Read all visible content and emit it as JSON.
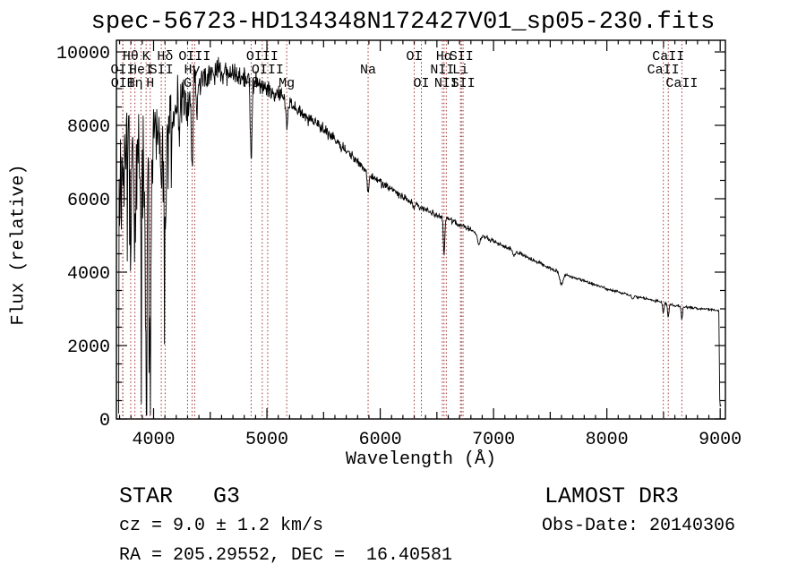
{
  "figure": {
    "annotations": {
      "class_label": "STAR   G3",
      "cz_label": "cz = 9.0 ± 1.2 km/s",
      "radec_label": "RA = 205.29552, DEC =  16.40581",
      "survey_label": "LAMOST DR3",
      "obsdate_label": "Obs-Date: 20140306"
    }
  },
  "chart_data": {
    "type": "line",
    "title": "spec-56723-HD134348N172427V01_sp05-230.fits",
    "xlabel": "Wavelength (Å)",
    "ylabel": "Flux (relative)",
    "xlim": [
      3672,
      9046
    ],
    "ylim": [
      0,
      10317
    ],
    "xticks": [
      4000,
      5000,
      6000,
      7000,
      8000,
      9000
    ],
    "yticks": [
      0,
      2000,
      4000,
      6000,
      8000,
      10000
    ],
    "x_minor_step": 100,
    "x_medium_step": 500,
    "y_minor_step": 500,
    "grid": false,
    "legend": "none",
    "colors": {
      "spectrum": "#000000",
      "line_marker": "#9b3030",
      "frame": "#000000",
      "background": "#ffffff"
    },
    "spectral_lines": [
      {
        "label": "Hθ",
        "wavelength": 3798,
        "row": 1
      },
      {
        "label": "K",
        "wavelength": 3934,
        "row": 1
      },
      {
        "label": "Hδ",
        "wavelength": 4102,
        "row": 1
      },
      {
        "label": "OIII",
        "wavelength": 4363,
        "row": 1
      },
      {
        "label": "OIII",
        "wavelength": 4959,
        "row": 1
      },
      {
        "label": "OI",
        "wavelength": 6300,
        "row": 1
      },
      {
        "label": "Hα",
        "wavelength": 6563,
        "row": 1
      },
      {
        "label": "SII",
        "wavelength": 6717,
        "row": 1
      },
      {
        "label": "CaII",
        "wavelength": 8542,
        "row": 1
      },
      {
        "label": "OII",
        "wavelength": 3727,
        "row": 2
      },
      {
        "label": "HeI",
        "wavelength": 3889,
        "row": 2
      },
      {
        "label": "SII",
        "wavelength": 4068,
        "row": 2
      },
      {
        "label": "Hγ",
        "wavelength": 4340,
        "row": 2
      },
      {
        "label": "OIII",
        "wavelength": 5007,
        "row": 2
      },
      {
        "label": "Na",
        "wavelength": 5893,
        "row": 2
      },
      {
        "label": "NII",
        "wavelength": 6548,
        "row": 2
      },
      {
        "label": "Li",
        "wavelength": 6708,
        "row": 2
      },
      {
        "label": "CaII",
        "wavelength": 8498,
        "row": 2
      },
      {
        "label": "OII",
        "wavelength": 3729,
        "row": 3
      },
      {
        "label": "Hη",
        "wavelength": 3835,
        "row": 3
      },
      {
        "label": "H",
        "wavelength": 3970,
        "row": 3
      },
      {
        "label": "G",
        "wavelength": 4300,
        "row": 3
      },
      {
        "label": "Hβ",
        "wavelength": 4861,
        "row": 3
      },
      {
        "label": "Mg",
        "wavelength": 5175,
        "row": 3
      },
      {
        "label": "OI",
        "wavelength": 6363,
        "row": 3
      },
      {
        "label": "NII",
        "wavelength": 6583,
        "row": 3
      },
      {
        "label": "SII",
        "wavelength": 6731,
        "row": 3
      },
      {
        "label": "CaII",
        "wavelength": 8662,
        "row": 3
      }
    ],
    "spectrum": {
      "start": 3692,
      "end": 9010,
      "sample_step": 4,
      "seed": 20140306,
      "continuum": [
        [
          3692,
          4200
        ],
        [
          3700,
          6600
        ],
        [
          3720,
          7000
        ],
        [
          3760,
          7400
        ],
        [
          3800,
          7600
        ],
        [
          3840,
          7500
        ],
        [
          3880,
          7800
        ],
        [
          3920,
          7500
        ],
        [
          3960,
          7200
        ],
        [
          4000,
          7700
        ],
        [
          4060,
          7600
        ],
        [
          4120,
          8000
        ],
        [
          4200,
          8600
        ],
        [
          4300,
          8900
        ],
        [
          4400,
          9250
        ],
        [
          4500,
          9400
        ],
        [
          4600,
          9450
        ],
        [
          4700,
          9400
        ],
        [
          4800,
          9350
        ],
        [
          4900,
          9200
        ],
        [
          5000,
          8950
        ],
        [
          5100,
          8850
        ],
        [
          5200,
          8600
        ],
        [
          5300,
          8350
        ],
        [
          5400,
          8150
        ],
        [
          5500,
          7900
        ],
        [
          5600,
          7600
        ],
        [
          5700,
          7300
        ],
        [
          5800,
          7000
        ],
        [
          5900,
          6650
        ],
        [
          6000,
          6450
        ],
        [
          6100,
          6250
        ],
        [
          6200,
          6050
        ],
        [
          6300,
          5850
        ],
        [
          6400,
          5700
        ],
        [
          6500,
          5550
        ],
        [
          6600,
          5450
        ],
        [
          6700,
          5300
        ],
        [
          6800,
          5150
        ],
        [
          6900,
          4980
        ],
        [
          7000,
          4850
        ],
        [
          7100,
          4700
        ],
        [
          7200,
          4550
        ],
        [
          7300,
          4400
        ],
        [
          7400,
          4250
        ],
        [
          7500,
          4100
        ],
        [
          7600,
          3980
        ],
        [
          7700,
          3870
        ],
        [
          7800,
          3760
        ],
        [
          7900,
          3650
        ],
        [
          8000,
          3550
        ],
        [
          8100,
          3460
        ],
        [
          8200,
          3380
        ],
        [
          8300,
          3300
        ],
        [
          8400,
          3230
        ],
        [
          8500,
          3160
        ],
        [
          8600,
          3100
        ],
        [
          8700,
          3050
        ],
        [
          8800,
          3010
        ],
        [
          8900,
          2990
        ],
        [
          8950,
          2960
        ],
        [
          8985,
          2945
        ],
        [
          8990,
          2930
        ],
        [
          8994,
          600
        ],
        [
          9000,
          360
        ],
        [
          9010,
          330
        ]
      ],
      "noise_amplitude": [
        [
          3692,
          1500
        ],
        [
          3800,
          1400
        ],
        [
          3900,
          1350
        ],
        [
          4000,
          1200
        ],
        [
          4100,
          1000
        ],
        [
          4200,
          800
        ],
        [
          4300,
          650
        ],
        [
          4400,
          500
        ],
        [
          4600,
          380
        ],
        [
          4800,
          330
        ],
        [
          5000,
          280
        ],
        [
          5200,
          230
        ],
        [
          5500,
          180
        ],
        [
          5800,
          140
        ],
        [
          6200,
          110
        ],
        [
          6563,
          90
        ],
        [
          7000,
          70
        ],
        [
          7500,
          55
        ],
        [
          8000,
          45
        ],
        [
          8500,
          40
        ],
        [
          9010,
          38
        ]
      ],
      "absorption_dips": [
        [
          3727,
          600,
          5
        ],
        [
          3798,
          2800,
          6
        ],
        [
          3835,
          3200,
          7
        ],
        [
          3889,
          3000,
          6
        ],
        [
          3934,
          4800,
          9
        ],
        [
          3970,
          5200,
          9
        ],
        [
          4068,
          1500,
          6
        ],
        [
          4102,
          3000,
          8
        ],
        [
          4227,
          900,
          6
        ],
        [
          4300,
          800,
          8
        ],
        [
          4340,
          2400,
          8
        ],
        [
          4383,
          900,
          5
        ],
        [
          4861,
          2200,
          8
        ],
        [
          5175,
          700,
          9
        ],
        [
          5893,
          500,
          7
        ],
        [
          6300,
          180,
          5
        ],
        [
          6563,
          1050,
          6
        ],
        [
          6870,
          280,
          12
        ],
        [
          7180,
          130,
          10
        ],
        [
          7600,
          320,
          15
        ],
        [
          8227,
          90,
          8
        ],
        [
          8498,
          300,
          5
        ],
        [
          8542,
          380,
          6
        ],
        [
          8662,
          340,
          6
        ]
      ],
      "emission_spikes": [
        [
          4356,
          1250,
          2.5
        ]
      ]
    }
  }
}
